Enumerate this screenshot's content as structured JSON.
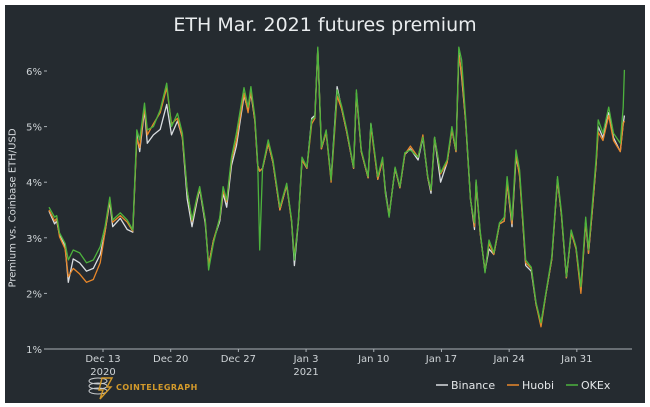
{
  "chart_data": {
    "type": "line",
    "title": "ETH Mar. 2021 futures premium",
    "xlabel": "",
    "ylabel": "Premium vs. Coinbase ETH/USD",
    "ylim": [
      1,
      6.5
    ],
    "xlim": [
      "2020-12-07T06",
      "2021-02-05T12"
    ],
    "yticks": [
      "1%",
      "2%",
      "3%",
      "4%",
      "5%",
      "6%"
    ],
    "ytick_values": [
      1,
      2,
      3,
      4,
      5,
      6
    ],
    "xticks": [
      {
        "date": "2020-12-13",
        "label": "Dec 13",
        "sublabel": "2020"
      },
      {
        "date": "2020-12-20",
        "label": "Dec 20",
        "sublabel": ""
      },
      {
        "date": "2020-12-27",
        "label": "Dec 27",
        "sublabel": ""
      },
      {
        "date": "2021-01-03",
        "label": "Jan 3",
        "sublabel": "2021"
      },
      {
        "date": "2021-01-10",
        "label": "Jan 10",
        "sublabel": ""
      },
      {
        "date": "2021-01-17",
        "label": "Jan 17",
        "sublabel": ""
      },
      {
        "date": "2021-01-24",
        "label": "Jan 24",
        "sublabel": ""
      },
      {
        "date": "2021-01-31",
        "label": "Jan 31",
        "sublabel": ""
      }
    ],
    "grid": false,
    "legend_position": "bottom-right",
    "x": [
      "2020-12-07T10",
      "2020-12-08T00",
      "2020-12-08T05",
      "2020-12-08T12",
      "2020-12-09T02",
      "2020-12-09T10",
      "2020-12-09T22",
      "2020-12-10T14",
      "2020-12-11T07",
      "2020-12-12T00",
      "2020-12-12T17",
      "2020-12-13T05",
      "2020-12-13T17",
      "2020-12-14T00",
      "2020-12-14T19",
      "2020-12-15T12",
      "2020-12-16T02",
      "2020-12-16T12",
      "2020-12-16T19",
      "2020-12-17T07",
      "2020-12-17T14",
      "2020-12-18T05",
      "2020-12-18T22",
      "2020-12-19T14",
      "2020-12-20T02",
      "2020-12-20T17",
      "2020-12-21T05",
      "2020-12-21T17",
      "2020-12-22T05",
      "2020-12-22T17",
      "2020-12-23T00",
      "2020-12-23T14",
      "2020-12-23T22",
      "2020-12-24T10",
      "2020-12-25T02",
      "2020-12-25T10",
      "2020-12-25T19",
      "2020-12-26T07",
      "2020-12-26T19",
      "2020-12-27T14",
      "2020-12-28T00",
      "2020-12-28T07",
      "2020-12-28T17",
      "2020-12-29T00",
      "2020-12-29T05",
      "2020-12-29T12",
      "2020-12-30T02",
      "2020-12-30T14",
      "2020-12-31T07",
      "2021-01-01T00",
      "2021-01-01T12",
      "2021-01-01T19",
      "2021-01-02T05",
      "2021-01-02T14",
      "2021-01-03T02",
      "2021-01-03T14",
      "2021-01-03T22",
      "2021-01-04T05",
      "2021-01-04T14",
      "2021-01-05T02",
      "2021-01-05T14",
      "2021-01-06T05",
      "2021-01-06T17",
      "2021-01-07T05",
      "2021-01-07T22",
      "2021-01-08T05",
      "2021-01-08T17",
      "2021-01-09T10",
      "2021-01-09T17",
      "2021-01-10T10",
      "2021-01-10T22",
      "2021-01-11T05",
      "2021-01-11T14",
      "2021-01-12T05",
      "2021-01-12T17",
      "2021-01-13T05",
      "2021-01-13T19",
      "2021-01-14T14",
      "2021-01-15T02",
      "2021-01-15T14",
      "2021-01-15T22",
      "2021-01-16T07",
      "2021-01-16T22",
      "2021-01-17T14",
      "2021-01-18T02",
      "2021-01-18T12",
      "2021-01-18T19",
      "2021-01-19T02",
      "2021-01-19T12",
      "2021-01-20T00",
      "2021-01-20T10",
      "2021-01-20T14",
      "2021-01-21T00",
      "2021-01-21T12",
      "2021-01-21T22",
      "2021-01-22T10",
      "2021-01-23T00",
      "2021-01-23T12",
      "2021-01-23T19",
      "2021-01-24T07",
      "2021-01-24T17",
      "2021-01-25T02",
      "2021-01-25T17",
      "2021-01-26T07",
      "2021-01-26T19",
      "2021-01-27T07",
      "2021-01-27T19",
      "2021-01-28T10",
      "2021-01-29T00",
      "2021-01-29T10",
      "2021-01-29T22",
      "2021-01-30T10",
      "2021-01-30T22",
      "2021-01-31T10",
      "2021-01-31T22",
      "2021-02-01T05",
      "2021-02-01T14",
      "2021-02-02T00",
      "2021-02-02T05",
      "2021-02-02T17",
      "2021-02-03T07",
      "2021-02-03T19",
      "2021-02-04T12",
      "2021-02-04T19",
      "2021-02-04T22"
    ],
    "series": [
      {
        "name": "Binance",
        "color": "#d9dde0",
        "values": [
          3.48,
          3.25,
          3.3,
          3.05,
          2.85,
          2.2,
          2.62,
          2.55,
          2.4,
          2.45,
          2.7,
          3.1,
          3.65,
          3.2,
          3.35,
          3.15,
          3.1,
          4.85,
          4.55,
          5.3,
          4.7,
          4.85,
          4.95,
          5.4,
          4.85,
          5.1,
          4.8,
          3.7,
          3.2,
          3.65,
          3.88,
          3.25,
          2.5,
          2.95,
          3.3,
          3.8,
          3.55,
          4.3,
          4.65,
          5.55,
          5.3,
          5.6,
          5.1,
          4.3,
          4.2,
          4.25,
          4.7,
          4.35,
          3.5,
          3.95,
          3.3,
          2.5,
          3.3,
          4.4,
          4.25,
          5.15,
          5.2,
          6.4,
          4.6,
          4.9,
          4.05,
          5.72,
          5.3,
          4.9,
          4.25,
          5.6,
          4.55,
          4.08,
          5.05,
          4.05,
          4.4,
          3.85,
          3.4,
          4.25,
          3.9,
          4.5,
          4.6,
          4.4,
          4.8,
          4.08,
          3.8,
          4.8,
          4.0,
          4.35,
          4.95,
          4.55,
          6.35,
          5.9,
          5.1,
          3.7,
          3.15,
          4.0,
          3.1,
          2.4,
          2.8,
          2.7,
          3.25,
          3.3,
          4.0,
          3.2,
          4.45,
          4.15,
          2.5,
          2.4,
          1.8,
          1.45,
          1.98,
          2.62,
          4.05,
          3.4,
          2.28,
          3.1,
          2.82,
          2.05,
          3.3,
          2.72,
          3.45,
          4.35,
          5.0,
          4.8,
          5.25,
          4.8,
          4.55,
          5.05,
          5.2
        ]
      },
      {
        "name": "Huobi",
        "color": "#e8872a",
        "values": [
          3.5,
          3.3,
          3.35,
          3.02,
          2.8,
          2.3,
          2.45,
          2.35,
          2.2,
          2.25,
          2.55,
          3.1,
          3.7,
          3.28,
          3.4,
          3.28,
          3.12,
          4.8,
          4.62,
          5.35,
          4.85,
          5.05,
          5.25,
          5.7,
          5.05,
          5.15,
          4.8,
          3.85,
          3.3,
          3.7,
          3.9,
          3.3,
          2.5,
          2.95,
          3.35,
          3.85,
          3.65,
          4.4,
          4.75,
          5.6,
          5.25,
          5.65,
          5.1,
          4.3,
          4.2,
          4.25,
          4.7,
          4.35,
          3.5,
          3.95,
          3.28,
          2.65,
          3.3,
          4.4,
          4.25,
          5.05,
          5.15,
          6.4,
          4.6,
          4.9,
          4.0,
          5.55,
          5.3,
          4.9,
          4.25,
          5.6,
          4.55,
          4.08,
          5.0,
          4.05,
          4.4,
          3.8,
          3.4,
          4.25,
          3.9,
          4.5,
          4.65,
          4.45,
          4.85,
          4.08,
          3.85,
          4.8,
          4.15,
          4.35,
          4.95,
          4.55,
          6.3,
          5.95,
          5.1,
          3.7,
          3.2,
          4.0,
          3.1,
          2.4,
          2.9,
          2.7,
          3.25,
          3.3,
          4.0,
          3.25,
          4.5,
          4.1,
          2.55,
          2.45,
          1.8,
          1.4,
          1.98,
          2.62,
          4.05,
          3.4,
          2.28,
          3.1,
          2.8,
          2.0,
          3.3,
          2.72,
          3.45,
          4.35,
          4.9,
          4.75,
          5.2,
          4.75,
          4.55,
          5.05,
          5.1
        ]
      },
      {
        "name": "OKEx",
        "color": "#4db33d",
        "values": [
          3.55,
          3.37,
          3.4,
          3.09,
          2.9,
          2.6,
          2.78,
          2.73,
          2.55,
          2.6,
          2.84,
          3.2,
          3.73,
          3.32,
          3.45,
          3.32,
          3.14,
          4.94,
          4.76,
          5.42,
          4.94,
          5.0,
          5.3,
          5.78,
          5.0,
          5.24,
          4.88,
          3.86,
          3.32,
          3.73,
          3.92,
          3.32,
          2.42,
          2.9,
          3.37,
          3.92,
          3.68,
          4.45,
          4.88,
          5.7,
          5.35,
          5.72,
          5.17,
          4.35,
          2.78,
          4.27,
          4.76,
          4.4,
          3.55,
          3.98,
          3.32,
          2.6,
          3.32,
          4.45,
          4.27,
          5.12,
          5.17,
          6.43,
          4.63,
          4.94,
          4.04,
          5.66,
          5.35,
          4.94,
          4.27,
          5.66,
          4.58,
          4.1,
          5.06,
          4.1,
          4.45,
          3.81,
          3.37,
          4.27,
          3.92,
          4.53,
          4.58,
          4.45,
          4.81,
          4.1,
          3.86,
          4.81,
          4.17,
          4.4,
          5.0,
          4.58,
          6.43,
          6.2,
          5.17,
          3.68,
          3.27,
          4.04,
          3.14,
          2.37,
          2.96,
          2.73,
          3.27,
          3.37,
          4.1,
          3.32,
          4.58,
          4.22,
          2.6,
          2.47,
          1.83,
          1.47,
          2.0,
          2.66,
          4.1,
          3.45,
          2.3,
          3.14,
          2.84,
          2.12,
          3.37,
          2.78,
          3.55,
          4.45,
          5.12,
          4.88,
          5.35,
          4.88,
          4.7,
          5.35,
          6.02
        ]
      }
    ]
  },
  "colors": {
    "background": "#252b30",
    "axis": "#aab1b6",
    "brand": "#d39a2b"
  },
  "branding": {
    "logo_text": "COINTELEGRAPH",
    "logo_icon": "cointelegraph-coin-stack-icon"
  }
}
